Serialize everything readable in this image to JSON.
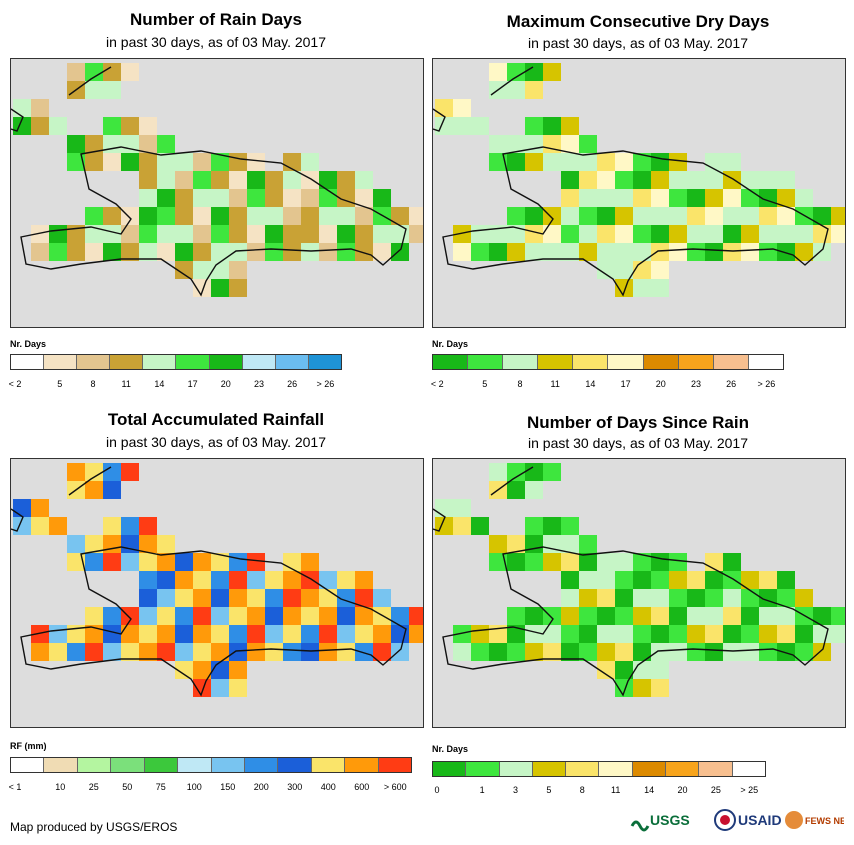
{
  "credit": "Map produced by USGS/EROS",
  "logos": [
    "USGS",
    "USAID",
    "FEWS NET"
  ],
  "panels": [
    {
      "id": "rain-days",
      "title": "Number of Rain Days",
      "subtitle": "in past 30 days, as of 03 May. 2017",
      "legend_title": "Nr. Days",
      "legend_labels": [
        "< 2",
        "5",
        "8",
        "11",
        "14",
        "17",
        "20",
        "23",
        "26",
        "> 26"
      ],
      "legend_colors": [
        "#ffffff",
        "#f5e3c4",
        "#e3c58f",
        "#c9a235",
        "#c6f5c6",
        "#3ee63e",
        "#18b818",
        "#bfe8f5",
        "#6bbdf0",
        "#1f93d6"
      ]
    },
    {
      "id": "dry-days",
      "title": "Maximum Consecutive Dry Days",
      "subtitle": "in past 30 days, as of 03 May. 2017",
      "legend_title": "Nr. Days",
      "legend_labels": [
        "< 2",
        "5",
        "8",
        "11",
        "14",
        "17",
        "20",
        "23",
        "26",
        "> 26"
      ],
      "legend_colors": [
        "#18b818",
        "#3ee63e",
        "#c6f5c6",
        "#d6c400",
        "#fae46a",
        "#fff8c6",
        "#dc8a00",
        "#f7a41c",
        "#f7bf8f",
        "#ffffff"
      ]
    },
    {
      "id": "rainfall",
      "title": "Total Accumulated Rainfall",
      "subtitle": "in past 30 days, as of 03 May. 2017",
      "legend_title": "RF (mm)",
      "legend_labels": [
        "< 1",
        "10",
        "25",
        "50",
        "75",
        "100",
        "150",
        "200",
        "300",
        "400",
        "600",
        "> 600"
      ],
      "legend_colors": [
        "#ffffff",
        "#f0dcb4",
        "#b4f5a0",
        "#7be07b",
        "#3cc83c",
        "#bfe8f5",
        "#78c4f0",
        "#2f8ee6",
        "#1b5fd9",
        "#fae46a",
        "#ff9a0a",
        "#ff3c14"
      ]
    },
    {
      "id": "since-rain",
      "title": "Number of Days Since Rain",
      "subtitle": "in past 30 days, as of 03 May. 2017",
      "legend_title": "Nr. Days",
      "legend_labels": [
        "0",
        "1",
        "3",
        "5",
        "8",
        "11",
        "14",
        "20",
        "25",
        "> 25"
      ],
      "legend_colors": [
        "#18b818",
        "#3ee63e",
        "#c6f5c6",
        "#d6c400",
        "#fae46a",
        "#fff8c6",
        "#dc8a00",
        "#f7a41c",
        "#f7bf8f",
        "#ffffff"
      ]
    }
  ]
}
